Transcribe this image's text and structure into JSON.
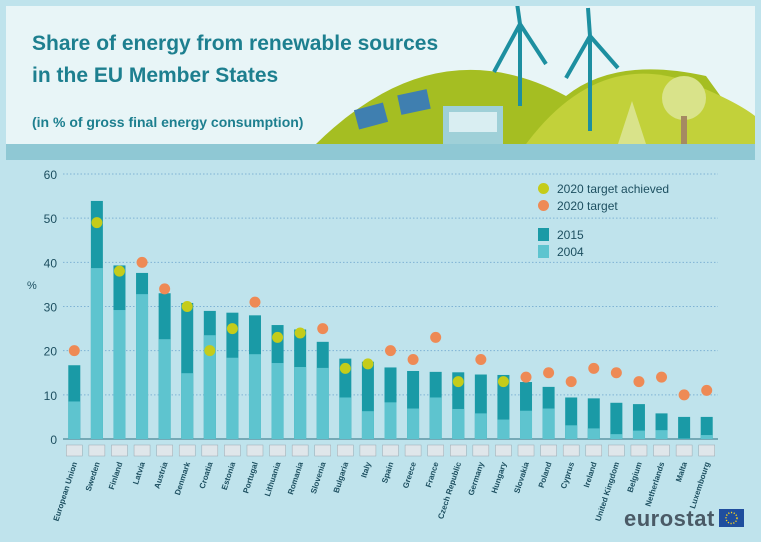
{
  "header": {
    "title_line1": "Share of energy from renewable sources",
    "title_line2": "in the EU Member States",
    "subtitle": "(in % of gross final energy consumption)"
  },
  "legend": {
    "achieved": "2020 target achieved",
    "target": "2020 target",
    "y2015": "2015",
    "y2004": "2004"
  },
  "brand": "eurostat",
  "colors": {
    "bar2015": "#1a9aa6",
    "bar2004": "#5ec4cf",
    "achieved": "#c5cc1a",
    "target": "#ee8a55",
    "grid": "#7fb3d4",
    "axis_text": "#1d4f60"
  },
  "chart_data": {
    "type": "bar",
    "ylabel": "%",
    "ylim": [
      0,
      60
    ],
    "yticks": [
      0,
      10,
      20,
      30,
      40,
      50,
      60
    ],
    "grid": true,
    "legend_position": "top-right",
    "categories": [
      "European Union",
      "Sweden",
      "Finland",
      "Latvia",
      "Austria",
      "Denmark",
      "Croatia",
      "Estonia",
      "Portugal",
      "Lithuania",
      "Romania",
      "Slovenia",
      "Bulgaria",
      "Italy",
      "Spain",
      "Greece",
      "France",
      "Czech Republic",
      "Germany",
      "Hungary",
      "Slovakia",
      "Poland",
      "Cyprus",
      "Ireland",
      "United Kingdom",
      "Belgium",
      "Netherlands",
      "Malta",
      "Luxembourg"
    ],
    "flags": [
      "eu-flag-icon",
      "sweden-flag-icon",
      "finland-flag-icon",
      "latvia-flag-icon",
      "austria-flag-icon",
      "denmark-flag-icon",
      "croatia-flag-icon",
      "estonia-flag-icon",
      "portugal-flag-icon",
      "lithuania-flag-icon",
      "romania-flag-icon",
      "slovenia-flag-icon",
      "bulgaria-flag-icon",
      "italy-flag-icon",
      "spain-flag-icon",
      "greece-flag-icon",
      "france-flag-icon",
      "czech-republic-flag-icon",
      "germany-flag-icon",
      "hungary-flag-icon",
      "slovakia-flag-icon",
      "poland-flag-icon",
      "cyprus-flag-icon",
      "ireland-flag-icon",
      "united-kingdom-flag-icon",
      "belgium-flag-icon",
      "netherlands-flag-icon",
      "malta-flag-icon",
      "luxembourg-flag-icon"
    ],
    "series": [
      {
        "name": "2015",
        "values": [
          16.7,
          53.9,
          39.3,
          37.6,
          33.0,
          30.8,
          29.0,
          28.6,
          28.0,
          25.8,
          24.8,
          22.0,
          18.2,
          17.5,
          16.2,
          15.4,
          15.2,
          15.1,
          14.6,
          14.5,
          12.9,
          11.8,
          9.4,
          9.2,
          8.2,
          7.9,
          5.8,
          5.0,
          5.0
        ]
      },
      {
        "name": "2004",
        "values": [
          8.5,
          38.7,
          29.2,
          32.8,
          22.6,
          14.9,
          23.5,
          18.4,
          19.2,
          17.2,
          16.3,
          16.1,
          9.4,
          6.3,
          8.3,
          6.9,
          9.4,
          6.8,
          5.8,
          4.4,
          6.4,
          6.9,
          3.1,
          2.4,
          1.1,
          1.9,
          2.0,
          0.1,
          0.9
        ]
      }
    ],
    "targets": [
      20,
      49,
      38,
      40,
      34,
      30,
      20,
      25,
      31,
      23,
      24,
      25,
      16,
      17,
      20,
      18,
      23,
      13,
      18,
      13,
      14,
      15,
      13,
      16,
      15,
      13,
      14,
      10,
      11
    ],
    "achieved": [
      false,
      true,
      true,
      false,
      false,
      true,
      true,
      true,
      false,
      true,
      true,
      false,
      true,
      true,
      false,
      false,
      false,
      true,
      false,
      true,
      false,
      false,
      false,
      false,
      false,
      false,
      false,
      false,
      false
    ]
  }
}
